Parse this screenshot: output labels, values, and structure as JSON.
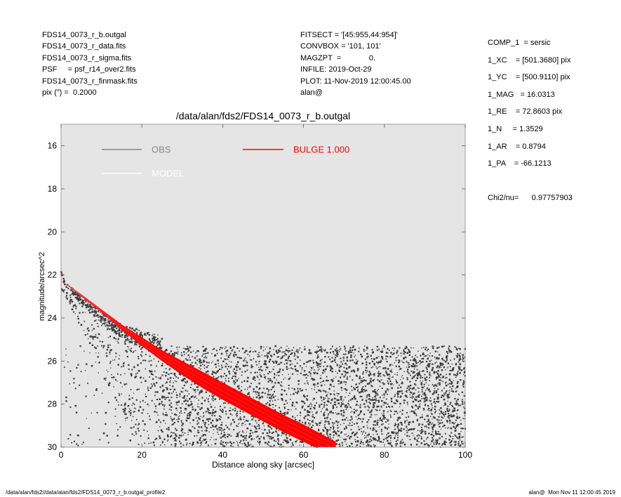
{
  "header_left": [
    "FDS14_0073_r_b.outgal",
    "FDS14_0073_r_data.fits",
    "FDS14_0073_r_sigma.fits",
    "PSF     = psf_r14_over2.fits",
    "FDS14_0073_r_finmask.fits",
    "pix (\") =  0.2000"
  ],
  "header_mid": [
    "FITSECT = '[45:955,44:954]'",
    "CONVBOX = '101, 101'",
    "MAGZPT  =             0.",
    "INFILE: 2019-Oct-29",
    "PLOT: 11-Nov-2019 12:00:45.00",
    "alan@"
  ],
  "header_right": [
    "COMP_1  = sersic",
    "1_XC    = [501.3680] pix",
    "1_YC    = [500.9110] pix",
    "1_MAG   = 16.0313",
    "1_RE    = 72.8603 pix",
    "1_N     = 1.3529",
    "1_AR    = 0.8794",
    "1_PA    = -66.1213",
    "",
    "Chi2/nu=      0.97757903"
  ],
  "footer_left": "/data/alan/fds2//data/alan/fds2/FDS14_0073_r_b.outgal_profile2",
  "footer_right": "alan@  Mon Nov 11 12:00:45 2019",
  "colors": {
    "plot_background": "#e5e5e5",
    "obs": "#3a3a3a",
    "obs_legend": "#888888",
    "model": "#ffffff",
    "bulge": "#ff0000"
  },
  "chart_data": {
    "type": "scatter",
    "title": "/data/alan/fds2/FDS14_0073_r_b.outgal",
    "xlabel": "Distance along sky [arcsec]",
    "ylabel": "magnitude/arcsec^2",
    "xlim": [
      0,
      100
    ],
    "ylim": [
      30,
      15
    ],
    "y_inverted": true,
    "xticks": [
      0,
      20,
      40,
      60,
      80,
      100
    ],
    "yticks": [
      16,
      18,
      20,
      22,
      24,
      26,
      28,
      30
    ],
    "grid": false,
    "legend": [
      {
        "name": "OBS",
        "color": "#888888",
        "style": "line"
      },
      {
        "name": "MODEL",
        "color": "#ffffff",
        "style": "line"
      },
      {
        "name": "BULGE  1.000",
        "color": "#ff0000",
        "style": "line"
      }
    ],
    "series": [
      {
        "name": "BULGE  1.000",
        "type": "band",
        "x": [
          0,
          2,
          5,
          10,
          15,
          20,
          25,
          30,
          35,
          40,
          45,
          50,
          55,
          60,
          65,
          68
        ],
        "y_upper": [
          22.3,
          22.5,
          22.9,
          23.6,
          24.3,
          24.9,
          25.5,
          26.0,
          26.5,
          27.0,
          27.5,
          28.0,
          28.5,
          28.95,
          29.45,
          29.75
        ],
        "y_lower": [
          22.3,
          22.55,
          23.0,
          23.75,
          24.55,
          25.3,
          26.0,
          26.65,
          27.25,
          27.8,
          28.3,
          28.8,
          29.3,
          29.75,
          30.2,
          30.5
        ]
      },
      {
        "name": "OBS",
        "type": "scatter",
        "description_points": {
          "inner_profile": {
            "x": [
              0,
              1,
              3,
              6,
              10,
              15,
              20,
              25
            ],
            "y": [
              21.9,
              22.4,
              22.8,
              23.3,
              24.0,
              24.6,
              25.0,
              25.3
            ]
          },
          "background_floor_mag": 25.5,
          "sky_noise_range": [
            25.3,
            30.0
          ]
        }
      }
    ]
  }
}
